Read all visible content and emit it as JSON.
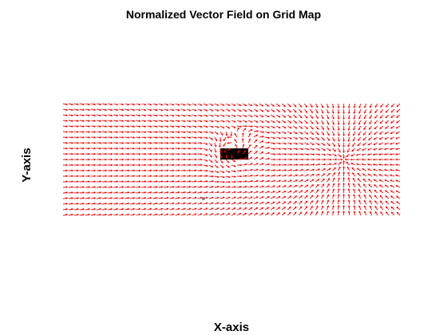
{
  "chart_data": {
    "type": "quiver",
    "title": "Normalized Vector Field on Grid Map",
    "xlabel": "X-axis",
    "ylabel": "Y-axis",
    "xlim": [
      0,
      60
    ],
    "ylim": [
      0,
      20
    ],
    "grid": false,
    "axes_visible": false,
    "arrow_color": "#ff0000",
    "grid_spacing": 1,
    "vector_length": 0.75,
    "field": {
      "goal": [
        50,
        10
      ],
      "obstacle": {
        "x": [
          28,
          33
        ],
        "y": [
          10,
          12
        ],
        "color": "#000000"
      },
      "start": {
        "point": [
          25,
          3
        ],
        "color": "#808080"
      }
    }
  }
}
